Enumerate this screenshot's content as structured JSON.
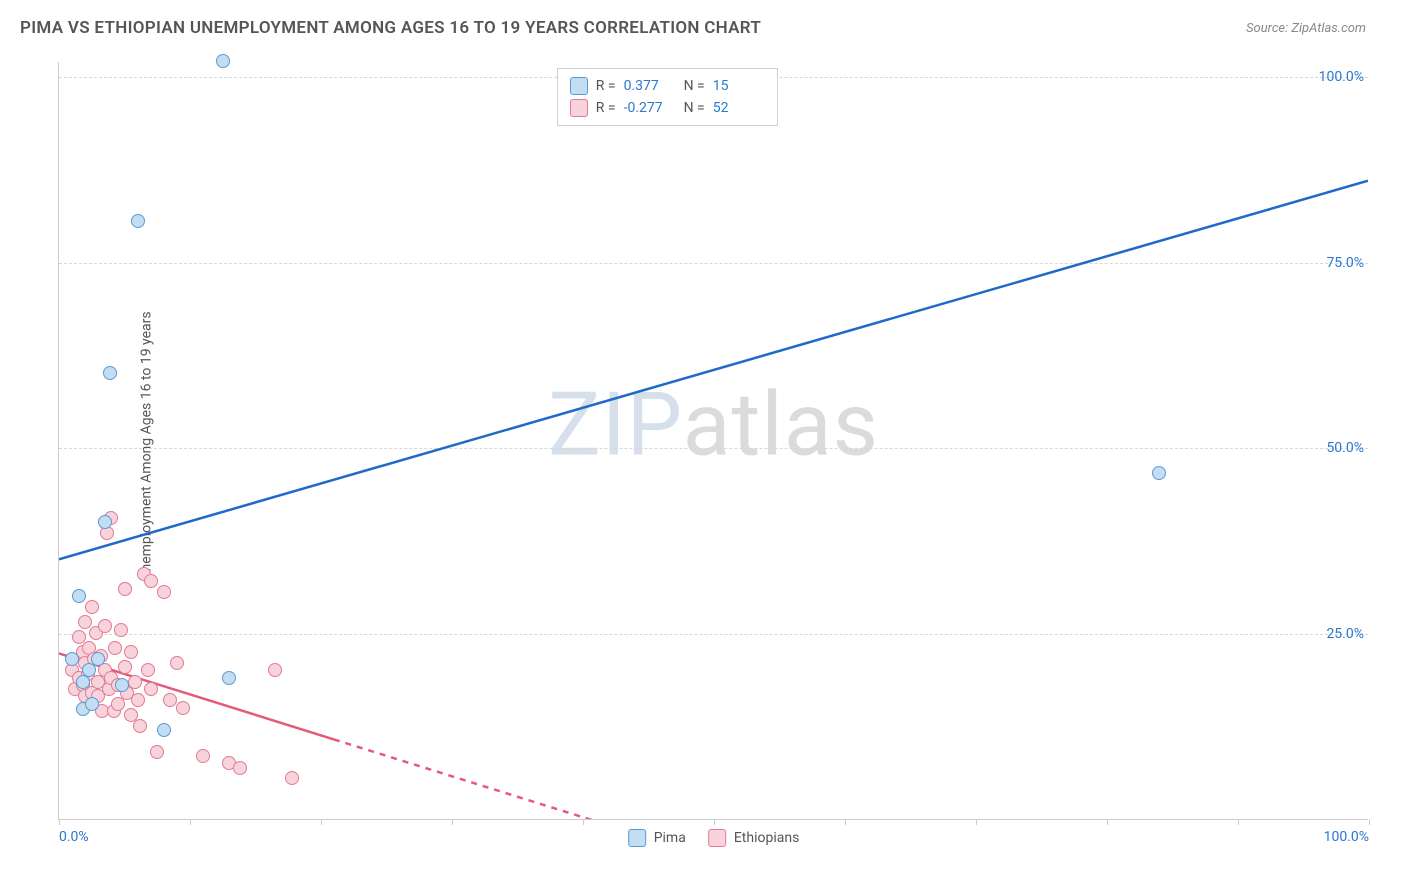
{
  "title": "PIMA VS ETHIOPIAN UNEMPLOYMENT AMONG AGES 16 TO 19 YEARS CORRELATION CHART",
  "source": "Source: ZipAtlas.com",
  "chart": {
    "type": "scatter",
    "y_axis_label": "Unemployment Among Ages 16 to 19 years",
    "xlim": [
      0,
      100
    ],
    "ylim": [
      0,
      102
    ],
    "x_ticks": [
      0,
      10,
      20,
      30,
      40,
      50,
      60,
      70,
      80,
      90,
      100
    ],
    "x_tick_labels": {
      "0": "0.0%",
      "100": "100.0%"
    },
    "y_ticks": [
      25,
      50,
      75,
      100
    ],
    "y_tick_labels": {
      "25": "25.0%",
      "50": "50.0%",
      "75": "75.0%",
      "100": "100.0%"
    },
    "axis_label_color": "#2a78d0",
    "gridline_color": "#d8d8d8",
    "background_color": "#ffffff",
    "point_radius": 7,
    "point_stroke_width": 1.5,
    "watermark": "ZIPatlas",
    "series": {
      "pima": {
        "label": "Pima",
        "fill": "#c3ddf3",
        "stroke": "#5a9bd5",
        "line_color": "#1f69c8",
        "R": "0.377",
        "N": "15",
        "trend": {
          "x1": 0,
          "y1": 35,
          "x2": 100,
          "y2": 86,
          "dashed_after_x": null
        },
        "points": [
          {
            "x": 1.0,
            "y": 21.5
          },
          {
            "x": 1.5,
            "y": 30.0
          },
          {
            "x": 1.8,
            "y": 18.5
          },
          {
            "x": 1.8,
            "y": 14.8
          },
          {
            "x": 2.3,
            "y": 20.0
          },
          {
            "x": 2.5,
            "y": 15.5
          },
          {
            "x": 3.0,
            "y": 21.5
          },
          {
            "x": 3.5,
            "y": 40.0
          },
          {
            "x": 3.9,
            "y": 60.0
          },
          {
            "x": 4.8,
            "y": 18.0
          },
          {
            "x": 6.0,
            "y": 80.5
          },
          {
            "x": 8.0,
            "y": 12.0
          },
          {
            "x": 12.5,
            "y": 102.0
          },
          {
            "x": 13.0,
            "y": 19.0
          },
          {
            "x": 84.0,
            "y": 46.5
          }
        ]
      },
      "ethiopians": {
        "label": "Ethiopians",
        "fill": "#f7d3db",
        "stroke": "#e47a95",
        "line_color": "#e35a7b",
        "R": "-0.277",
        "N": "52",
        "trend": {
          "x1": 0,
          "y1": 22.3,
          "x2": 45,
          "y2": -2.5,
          "dashed_after_x": 21
        },
        "points": [
          {
            "x": 1.0,
            "y": 20.0
          },
          {
            "x": 1.2,
            "y": 17.5
          },
          {
            "x": 1.5,
            "y": 24.5
          },
          {
            "x": 1.5,
            "y": 19.0
          },
          {
            "x": 1.8,
            "y": 22.5
          },
          {
            "x": 1.8,
            "y": 18.0
          },
          {
            "x": 2.0,
            "y": 21.0
          },
          {
            "x": 2.0,
            "y": 16.5
          },
          {
            "x": 2.0,
            "y": 26.5
          },
          {
            "x": 2.2,
            "y": 19.5
          },
          {
            "x": 2.3,
            "y": 23.0
          },
          {
            "x": 2.5,
            "y": 17.0
          },
          {
            "x": 2.5,
            "y": 28.5
          },
          {
            "x": 2.7,
            "y": 21.5
          },
          {
            "x": 2.8,
            "y": 25.0
          },
          {
            "x": 3.0,
            "y": 18.5
          },
          {
            "x": 3.0,
            "y": 16.5
          },
          {
            "x": 3.2,
            "y": 22.0
          },
          {
            "x": 3.3,
            "y": 14.5
          },
          {
            "x": 3.5,
            "y": 20.0
          },
          {
            "x": 3.5,
            "y": 26.0
          },
          {
            "x": 3.7,
            "y": 38.5
          },
          {
            "x": 3.8,
            "y": 17.5
          },
          {
            "x": 4.0,
            "y": 19.0
          },
          {
            "x": 4.0,
            "y": 40.5
          },
          {
            "x": 4.2,
            "y": 14.5
          },
          {
            "x": 4.3,
            "y": 23.0
          },
          {
            "x": 4.5,
            "y": 18.0
          },
          {
            "x": 4.5,
            "y": 15.5
          },
          {
            "x": 4.7,
            "y": 25.5
          },
          {
            "x": 5.0,
            "y": 20.5
          },
          {
            "x": 5.0,
            "y": 31.0
          },
          {
            "x": 5.2,
            "y": 17.0
          },
          {
            "x": 5.5,
            "y": 14.0
          },
          {
            "x": 5.5,
            "y": 22.5
          },
          {
            "x": 5.8,
            "y": 18.5
          },
          {
            "x": 6.0,
            "y": 16.0
          },
          {
            "x": 6.2,
            "y": 12.5
          },
          {
            "x": 6.5,
            "y": 33.0
          },
          {
            "x": 6.8,
            "y": 20.0
          },
          {
            "x": 7.0,
            "y": 32.0
          },
          {
            "x": 7.0,
            "y": 17.5
          },
          {
            "x": 7.5,
            "y": 9.0
          },
          {
            "x": 8.0,
            "y": 30.5
          },
          {
            "x": 8.5,
            "y": 16.0
          },
          {
            "x": 9.0,
            "y": 21.0
          },
          {
            "x": 9.5,
            "y": 15.0
          },
          {
            "x": 11.0,
            "y": 8.5
          },
          {
            "x": 13.0,
            "y": 7.5
          },
          {
            "x": 13.8,
            "y": 6.8
          },
          {
            "x": 16.5,
            "y": 20.0
          },
          {
            "x": 17.8,
            "y": 5.5
          }
        ]
      }
    }
  }
}
